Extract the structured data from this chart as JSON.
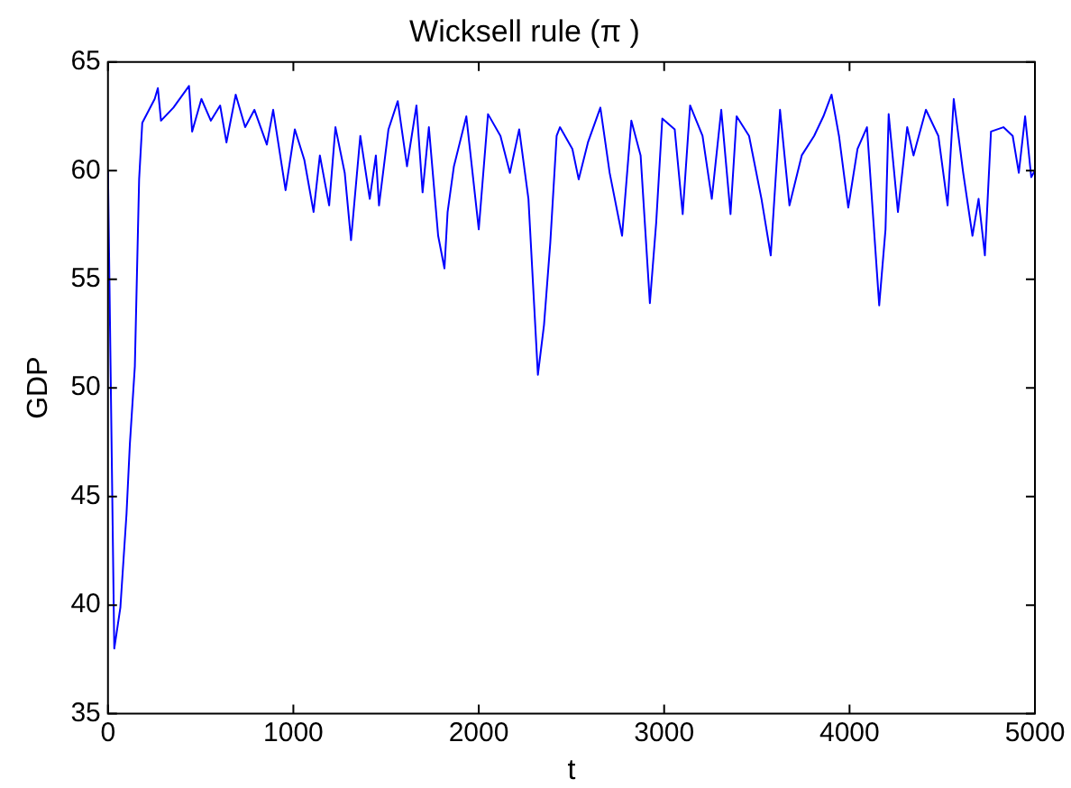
{
  "chart_data": {
    "type": "line",
    "title": "Wicksell rule (π )",
    "xlabel": "t",
    "ylabel": "GDP",
    "xlim": [
      0,
      5000
    ],
    "xticks": [
      0,
      1000,
      2000,
      3000,
      4000,
      5000
    ],
    "ylim": [
      35,
      65
    ],
    "yticks": [
      35,
      40,
      45,
      50,
      55,
      60,
      65
    ],
    "grid": false,
    "legend": false,
    "marker": "none",
    "line_style": "solid",
    "series": [
      {
        "color": "#0000ff",
        "x": [
          0,
          34,
          67,
          100,
          118,
          145,
          168,
          185,
          252,
          269,
          286,
          353,
          437,
          454,
          504,
          555,
          605,
          639,
          689,
          740,
          790,
          857,
          891,
          958,
          1008,
          1059,
          1109,
          1143,
          1193,
          1227,
          1277,
          1311,
          1361,
          1412,
          1445,
          1462,
          1513,
          1563,
          1613,
          1664,
          1697,
          1731,
          1781,
          1815,
          1832,
          1866,
          1933,
          2000,
          2050,
          2117,
          2168,
          2218,
          2268,
          2319,
          2352,
          2386,
          2420,
          2438,
          2505,
          2539,
          2589,
          2656,
          2706,
          2773,
          2823,
          2873,
          2923,
          2957,
          2990,
          3057,
          3100,
          3140,
          3207,
          3257,
          3308,
          3358,
          3391,
          3458,
          3525,
          3575,
          3625,
          3676,
          3742,
          3809,
          3859,
          3903,
          3943,
          3993,
          4043,
          4094,
          4160,
          4194,
          4211,
          4261,
          4311,
          4345,
          4412,
          4479,
          4529,
          4562,
          4613,
          4663,
          4696,
          4730,
          4763,
          4830,
          4880,
          4913,
          4947,
          4980,
          5000
        ],
        "values": [
          60,
          38,
          39.9,
          44.2,
          47.4,
          51,
          59.6,
          62.2,
          63.3,
          63.8,
          62.3,
          62.9,
          63.9,
          61.8,
          63.3,
          62.3,
          63,
          61.3,
          63.5,
          62,
          62.8,
          61.2,
          62.8,
          59.1,
          61.9,
          60.5,
          58.1,
          60.7,
          58.4,
          62,
          59.9,
          56.8,
          61.6,
          58.7,
          60.7,
          58.4,
          61.9,
          63.2,
          60.2,
          63,
          59,
          62,
          57,
          55.5,
          58.1,
          60.2,
          62.5,
          57.3,
          62.6,
          61.6,
          59.9,
          61.9,
          58.7,
          50.6,
          52.9,
          56.7,
          61.6,
          62,
          61,
          59.6,
          61.3,
          62.9,
          59.9,
          57,
          62.3,
          60.7,
          53.9,
          57.6,
          62.4,
          61.9,
          58,
          63,
          61.6,
          58.7,
          62.8,
          58,
          62.5,
          61.6,
          58.7,
          56.1,
          62.8,
          58.4,
          60.7,
          61.6,
          62.5,
          63.5,
          61.6,
          58.3,
          61,
          62,
          53.8,
          57.3,
          62.6,
          58.1,
          62,
          60.7,
          62.8,
          61.6,
          58.4,
          63.3,
          59.9,
          57,
          58.7,
          56.1,
          61.8,
          62,
          61.6,
          59.9,
          62.5,
          59.7,
          60
        ]
      }
    ]
  }
}
